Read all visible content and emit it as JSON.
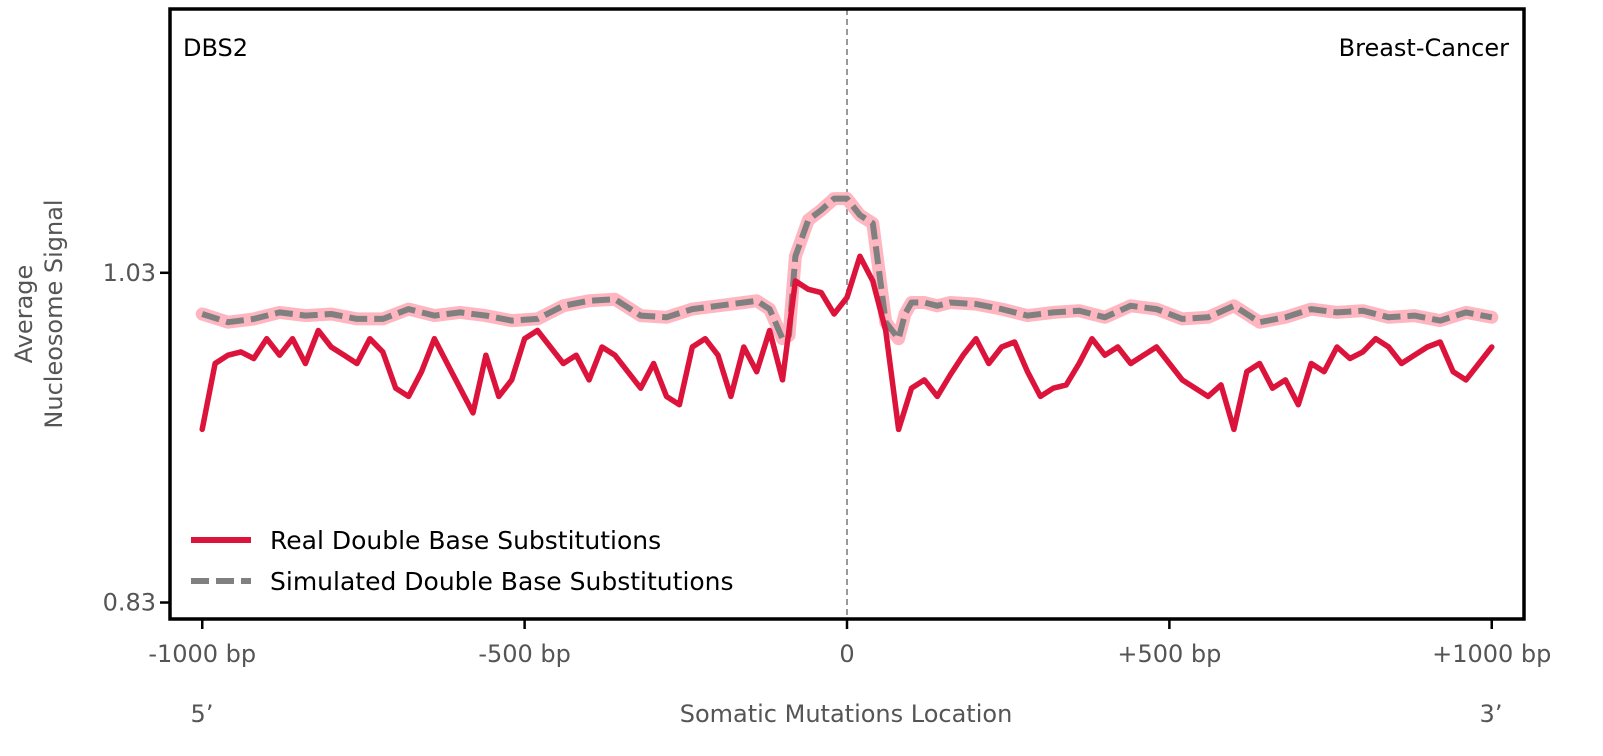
{
  "chart_data": {
    "type": "line",
    "signature_label": "DBS2",
    "cancer_type_label": "Breast-Cancer",
    "ylabel_line1": "Average",
    "ylabel_line2": "Nucleosome Signal",
    "xlabel": "Somatic Mutations Location",
    "five_prime_label": "5’",
    "three_prime_label": "3’",
    "xlim": [
      -1050,
      1050
    ],
    "ylim": [
      0.82,
      1.19
    ],
    "x_ticks": [
      {
        "value": -1000,
        "label": "-1000 bp"
      },
      {
        "value": -500,
        "label": "-500 bp"
      },
      {
        "value": 0,
        "label": "0"
      },
      {
        "value": 500,
        "label": "+500 bp"
      },
      {
        "value": 1000,
        "label": "+1000 bp"
      }
    ],
    "y_ticks": [
      {
        "value": 1.03,
        "label": "1.03"
      },
      {
        "value": 0.83,
        "label": "0.83"
      }
    ],
    "vertical_line_x": 0,
    "legend_position": "lower-left",
    "grid": false,
    "series": [
      {
        "name": "Real Double Base Substitutions",
        "color": "#DC143C",
        "dash": "solid",
        "x": [
          -1000,
          -980,
          -960,
          -940,
          -920,
          -900,
          -880,
          -860,
          -840,
          -820,
          -800,
          -780,
          -760,
          -740,
          -720,
          -700,
          -680,
          -660,
          -640,
          -620,
          -600,
          -580,
          -560,
          -540,
          -520,
          -500,
          -480,
          -460,
          -440,
          -420,
          -400,
          -380,
          -360,
          -340,
          -320,
          -300,
          -280,
          -260,
          -240,
          -220,
          -200,
          -180,
          -160,
          -140,
          -120,
          -100,
          -80,
          -60,
          -40,
          -20,
          0,
          20,
          40,
          60,
          80,
          100,
          120,
          140,
          160,
          180,
          200,
          220,
          240,
          260,
          280,
          300,
          320,
          340,
          360,
          380,
          400,
          420,
          440,
          460,
          480,
          500,
          520,
          540,
          560,
          580,
          600,
          620,
          640,
          660,
          680,
          700,
          720,
          740,
          760,
          780,
          800,
          820,
          840,
          860,
          880,
          900,
          920,
          940,
          960,
          980,
          1000
        ],
        "y": [
          0.935,
          0.975,
          0.98,
          0.982,
          0.978,
          0.99,
          0.98,
          0.99,
          0.975,
          0.995,
          0.985,
          0.98,
          0.975,
          0.99,
          0.982,
          0.96,
          0.955,
          0.97,
          0.99,
          0.975,
          0.96,
          0.945,
          0.98,
          0.955,
          0.965,
          0.99,
          0.995,
          0.985,
          0.975,
          0.98,
          0.965,
          0.985,
          0.98,
          0.97,
          0.96,
          0.975,
          0.955,
          0.95,
          0.985,
          0.99,
          0.98,
          0.955,
          0.985,
          0.97,
          0.995,
          0.965,
          1.025,
          1.02,
          1.018,
          1.005,
          1.015,
          1.04,
          1.025,
          0.995,
          0.935,
          0.96,
          0.965,
          0.955,
          0.968,
          0.98,
          0.99,
          0.975,
          0.985,
          0.988,
          0.97,
          0.955,
          0.96,
          0.962,
          0.975,
          0.99,
          0.98,
          0.985,
          0.975,
          0.98,
          0.985,
          0.975,
          0.965,
          0.96,
          0.955,
          0.962,
          0.935,
          0.97,
          0.975,
          0.96,
          0.965,
          0.95,
          0.975,
          0.97,
          0.985,
          0.978,
          0.982,
          0.99,
          0.985,
          0.975,
          0.98,
          0.985,
          0.988,
          0.97,
          0.965,
          0.975,
          0.985
        ]
      },
      {
        "name": "Simulated Double Base Substitutions",
        "color": "#808080",
        "band_color": "#FFB6C1",
        "dash": "dashed",
        "x": [
          -1000,
          -960,
          -920,
          -880,
          -840,
          -800,
          -760,
          -720,
          -680,
          -640,
          -600,
          -560,
          -520,
          -480,
          -440,
          -400,
          -360,
          -320,
          -280,
          -240,
          -200,
          -160,
          -140,
          -120,
          -100,
          -90,
          -80,
          -60,
          -40,
          -20,
          0,
          20,
          40,
          60,
          80,
          90,
          100,
          120,
          140,
          160,
          200,
          240,
          280,
          320,
          360,
          400,
          440,
          480,
          520,
          560,
          600,
          640,
          680,
          720,
          760,
          800,
          840,
          880,
          920,
          960,
          1000
        ],
        "y": [
          1.005,
          1.0,
          1.002,
          1.006,
          1.004,
          1.005,
          1.002,
          1.002,
          1.008,
          1.004,
          1.006,
          1.004,
          1.001,
          1.002,
          1.01,
          1.013,
          1.014,
          1.004,
          1.003,
          1.008,
          1.01,
          1.012,
          1.013,
          1.008,
          0.99,
          0.992,
          1.04,
          1.062,
          1.068,
          1.075,
          1.075,
          1.065,
          1.06,
          1.0,
          0.99,
          1.005,
          1.012,
          1.012,
          1.01,
          1.012,
          1.011,
          1.008,
          1.004,
          1.006,
          1.007,
          1.003,
          1.01,
          1.008,
          1.002,
          1.003,
          1.01,
          1.0,
          1.003,
          1.008,
          1.006,
          1.007,
          1.003,
          1.004,
          1.001,
          1.006,
          1.003
        ]
      }
    ]
  }
}
